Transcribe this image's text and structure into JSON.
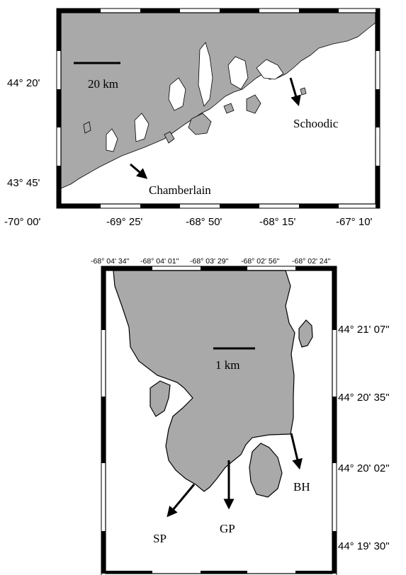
{
  "colors": {
    "land": "#a9a9a9",
    "water": "#ffffff",
    "outline": "#000000"
  },
  "top_map": {
    "lat_labels": [
      "44° 20'",
      "43° 45'"
    ],
    "lon_labels": [
      "-70° 00'",
      "-69° 25'",
      "-68° 50'",
      "-68° 15'",
      "-67° 10'"
    ],
    "scale_label": "20 km",
    "sites": {
      "schoodic": "Schoodic",
      "chamberlain": "Chamberlain"
    }
  },
  "bottom_map": {
    "lon_labels": [
      "-68° 04' 34\"",
      "-68° 04' 01\"",
      "-68° 03' 29\"",
      "-68° 02' 56\"",
      "-68° 02' 24\""
    ],
    "lat_labels": [
      "44° 21' 07\"",
      "44° 20' 35\"",
      "44° 20' 02\"",
      "44° 19' 30\""
    ],
    "scale_label": "1 km",
    "sites": {
      "sp": "SP",
      "gp": "GP",
      "bh": "BH"
    }
  }
}
